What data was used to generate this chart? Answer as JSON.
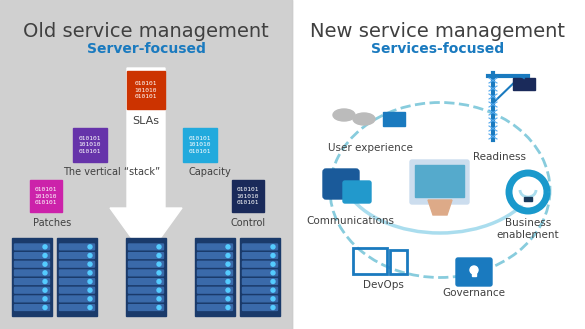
{
  "left_bg": "#d0d0d0",
  "right_bg": "#ffffff",
  "left_title": "Old service management",
  "left_subtitle": "Server-focused",
  "right_title": "New service management",
  "right_subtitle": "Services-focused",
  "title_color": "#404040",
  "subtitle_color": "#1a7abf",
  "binary_text": "010101\n101010\n010101",
  "binary_colors": {
    "red": "#cc3300",
    "purple": "#6633aa",
    "cyan": "#22aadd",
    "magenta": "#cc22aa",
    "navy": "#1a2a5a"
  },
  "server_color": "#1a3a6a",
  "server_stripe": "#3a6aaa",
  "arrow_color": "#ffffff",
  "cloud_color": "#aaddee",
  "icon_blue": "#1a7abf",
  "icon_light_blue": "#55bbee"
}
